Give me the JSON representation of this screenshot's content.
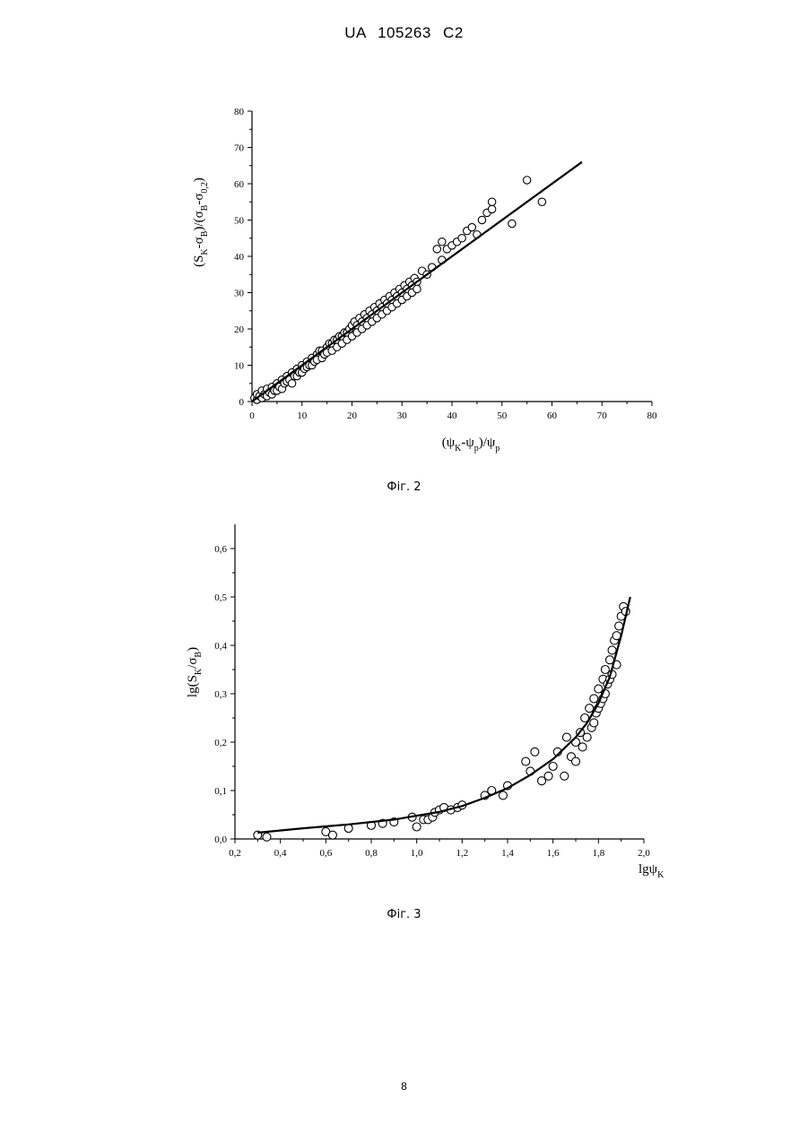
{
  "page": {
    "header": "UA 105263 C2",
    "page_number": "8"
  },
  "chart_data": [
    {
      "type": "scatter",
      "caption": "Фіг. 2",
      "xlabel_parts": [
        "(ψ",
        "K",
        "-ψ",
        "p",
        ")/ψ",
        "p"
      ],
      "ylabel_parts": [
        "(S",
        "K",
        "-σ",
        "B",
        ")/(σ",
        "B",
        "-σ",
        "0,2",
        ")"
      ],
      "xlim": [
        0,
        80
      ],
      "ylim": [
        0,
        80
      ],
      "x_ticks": [
        "0",
        "10",
        "20",
        "30",
        "40",
        "50",
        "60",
        "70",
        "80"
      ],
      "y_ticks": [
        "0",
        "10",
        "20",
        "30",
        "40",
        "50",
        "60",
        "70",
        "80"
      ],
      "grid": false,
      "series": [
        {
          "kind": "points",
          "marker": "open-circle",
          "points": [
            [
              0.5,
              1
            ],
            [
              1,
              0.5
            ],
            [
              1,
              2
            ],
            [
              1.5,
              1.5
            ],
            [
              2,
              1
            ],
            [
              2,
              3
            ],
            [
              2.5,
              2
            ],
            [
              3,
              1.5
            ],
            [
              3,
              3.5
            ],
            [
              3.5,
              2.5
            ],
            [
              4,
              4
            ],
            [
              4,
              2
            ],
            [
              4.5,
              3
            ],
            [
              5,
              5
            ],
            [
              5,
              3
            ],
            [
              5.5,
              4
            ],
            [
              6,
              6
            ],
            [
              6,
              3.5
            ],
            [
              6.5,
              5
            ],
            [
              7,
              7
            ],
            [
              7,
              5.5
            ],
            [
              7.5,
              6
            ],
            [
              8,
              8
            ],
            [
              8,
              5
            ],
            [
              8.5,
              7
            ],
            [
              9,
              9
            ],
            [
              9,
              7
            ],
            [
              9.5,
              8
            ],
            [
              10,
              10
            ],
            [
              10,
              8
            ],
            [
              10.5,
              9
            ],
            [
              11,
              11
            ],
            [
              11,
              9.5
            ],
            [
              11.5,
              10
            ],
            [
              12,
              12
            ],
            [
              12,
              10
            ],
            [
              12.5,
              11
            ],
            [
              13,
              13
            ],
            [
              13,
              11.5
            ],
            [
              13.5,
              14
            ],
            [
              14,
              14
            ],
            [
              14,
              12
            ],
            [
              14.5,
              13
            ],
            [
              15,
              15
            ],
            [
              15,
              13.5
            ],
            [
              15.5,
              16
            ],
            [
              16,
              16
            ],
            [
              16,
              14
            ],
            [
              16.5,
              17
            ],
            [
              17,
              17
            ],
            [
              17,
              15
            ],
            [
              17.5,
              18
            ],
            [
              18,
              18
            ],
            [
              18,
              16
            ],
            [
              18.5,
              19
            ],
            [
              19,
              19
            ],
            [
              19,
              17
            ],
            [
              19.5,
              20
            ],
            [
              20,
              21
            ],
            [
              20,
              18
            ],
            [
              20.5,
              22
            ],
            [
              21,
              21
            ],
            [
              21,
              19
            ],
            [
              21.5,
              23
            ],
            [
              22,
              22
            ],
            [
              22,
              20
            ],
            [
              22.5,
              24
            ],
            [
              23,
              23
            ],
            [
              23,
              21
            ],
            [
              23.5,
              25
            ],
            [
              24,
              24
            ],
            [
              24,
              22
            ],
            [
              24.5,
              26
            ],
            [
              25,
              25
            ],
            [
              25,
              23
            ],
            [
              25.5,
              27
            ],
            [
              26,
              26
            ],
            [
              26,
              24
            ],
            [
              26.5,
              28
            ],
            [
              27,
              27
            ],
            [
              27,
              25
            ],
            [
              27.5,
              29
            ],
            [
              28,
              28
            ],
            [
              28,
              26
            ],
            [
              28.5,
              30
            ],
            [
              29,
              29
            ],
            [
              29,
              27
            ],
            [
              29.5,
              31
            ],
            [
              30,
              30
            ],
            [
              30,
              28
            ],
            [
              30.5,
              32
            ],
            [
              31,
              31
            ],
            [
              31,
              29
            ],
            [
              31.5,
              33
            ],
            [
              32,
              32
            ],
            [
              32,
              30
            ],
            [
              32.5,
              34
            ],
            [
              33,
              33
            ],
            [
              33,
              31
            ],
            [
              34,
              36
            ],
            [
              35,
              35
            ],
            [
              36,
              37
            ],
            [
              37,
              42
            ],
            [
              38,
              39
            ],
            [
              38,
              44
            ],
            [
              39,
              42
            ],
            [
              40,
              43
            ],
            [
              41,
              44
            ],
            [
              42,
              45
            ],
            [
              43,
              47
            ],
            [
              44,
              48
            ],
            [
              45,
              46
            ],
            [
              46,
              50
            ],
            [
              47,
              52
            ],
            [
              48,
              53
            ],
            [
              48,
              55
            ],
            [
              52,
              49
            ],
            [
              55,
              61
            ],
            [
              58,
              55
            ]
          ]
        },
        {
          "kind": "fit-line",
          "points": [
            [
              0,
              0
            ],
            [
              66,
              66
            ]
          ]
        }
      ]
    },
    {
      "type": "scatter",
      "caption": "Фіг. 3",
      "xlabel_parts": [
        "lgψ",
        "K"
      ],
      "ylabel_parts": [
        "lg(S",
        "K",
        "/σ",
        "B",
        ")"
      ],
      "xlim": [
        0.2,
        2.0
      ],
      "ylim": [
        0.0,
        0.65
      ],
      "x_ticks": [
        "0,2",
        "0,4",
        "0,6",
        "0,8",
        "1,0",
        "1,2",
        "1,4",
        "1,6",
        "1,8",
        "2,0"
      ],
      "y_ticks": [
        "0,0",
        "0,1",
        "0,2",
        "0,3",
        "0,4",
        "0,5",
        "0,6"
      ],
      "grid": false,
      "series": [
        {
          "kind": "points",
          "marker": "open-circle",
          "points": [
            [
              0.3,
              0.008
            ],
            [
              0.34,
              0.004
            ],
            [
              0.6,
              0.015
            ],
            [
              0.63,
              0.008
            ],
            [
              0.7,
              0.022
            ],
            [
              0.8,
              0.028
            ],
            [
              0.85,
              0.032
            ],
            [
              0.9,
              0.035
            ],
            [
              0.98,
              0.045
            ],
            [
              1.0,
              0.025
            ],
            [
              1.03,
              0.04
            ],
            [
              1.05,
              0.04
            ],
            [
              1.07,
              0.045
            ],
            [
              1.08,
              0.055
            ],
            [
              1.1,
              0.06
            ],
            [
              1.12,
              0.065
            ],
            [
              1.15,
              0.06
            ],
            [
              1.18,
              0.065
            ],
            [
              1.2,
              0.07
            ],
            [
              1.3,
              0.09
            ],
            [
              1.33,
              0.1
            ],
            [
              1.38,
              0.09
            ],
            [
              1.4,
              0.11
            ],
            [
              1.48,
              0.16
            ],
            [
              1.5,
              0.14
            ],
            [
              1.52,
              0.18
            ],
            [
              1.55,
              0.12
            ],
            [
              1.58,
              0.13
            ],
            [
              1.6,
              0.15
            ],
            [
              1.62,
              0.18
            ],
            [
              1.65,
              0.13
            ],
            [
              1.66,
              0.21
            ],
            [
              1.68,
              0.17
            ],
            [
              1.7,
              0.2
            ],
            [
              1.7,
              0.16
            ],
            [
              1.72,
              0.22
            ],
            [
              1.73,
              0.19
            ],
            [
              1.74,
              0.25
            ],
            [
              1.75,
              0.21
            ],
            [
              1.76,
              0.27
            ],
            [
              1.77,
              0.23
            ],
            [
              1.78,
              0.29
            ],
            [
              1.78,
              0.24
            ],
            [
              1.79,
              0.26
            ],
            [
              1.8,
              0.31
            ],
            [
              1.8,
              0.27
            ],
            [
              1.81,
              0.28
            ],
            [
              1.82,
              0.33
            ],
            [
              1.82,
              0.29
            ],
            [
              1.83,
              0.35
            ],
            [
              1.83,
              0.3
            ],
            [
              1.84,
              0.32
            ],
            [
              1.85,
              0.37
            ],
            [
              1.85,
              0.33
            ],
            [
              1.86,
              0.39
            ],
            [
              1.86,
              0.34
            ],
            [
              1.87,
              0.41
            ],
            [
              1.88,
              0.36
            ],
            [
              1.88,
              0.42
            ],
            [
              1.89,
              0.44
            ],
            [
              1.9,
              0.46
            ],
            [
              1.91,
              0.48
            ],
            [
              1.92,
              0.47
            ]
          ]
        },
        {
          "kind": "fit-curve",
          "points": [
            [
              0.3,
              0.013
            ],
            [
              0.5,
              0.022
            ],
            [
              0.7,
              0.03
            ],
            [
              0.9,
              0.04
            ],
            [
              1.0,
              0.048
            ],
            [
              1.1,
              0.056
            ],
            [
              1.2,
              0.068
            ],
            [
              1.3,
              0.085
            ],
            [
              1.4,
              0.105
            ],
            [
              1.5,
              0.132
            ],
            [
              1.6,
              0.165
            ],
            [
              1.7,
              0.21
            ],
            [
              1.75,
              0.24
            ],
            [
              1.8,
              0.28
            ],
            [
              1.85,
              0.335
            ],
            [
              1.9,
              0.42
            ],
            [
              1.94,
              0.5
            ]
          ]
        }
      ]
    }
  ]
}
